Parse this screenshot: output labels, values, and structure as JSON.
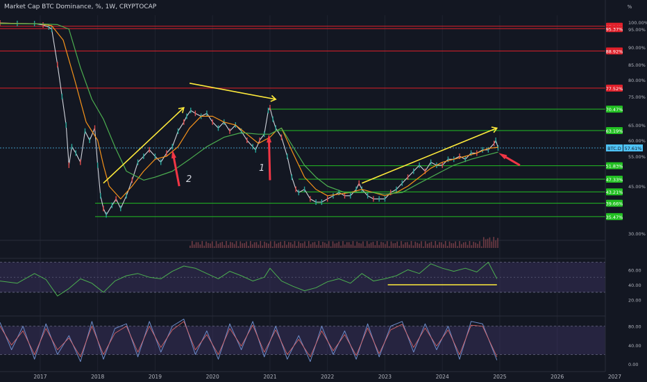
{
  "header": {
    "title": "Market Cap BTC Dominance, %, 1W, CRYPTOCAP",
    "axis_unit": "%"
  },
  "colors": {
    "background": "#131722",
    "price": "#d1d4dc",
    "ema_fast": "#f7931a",
    "ema_slow": "#4caf50",
    "trend": "#ffeb3b",
    "arrow": "#f23645",
    "res_line": "#e0202a",
    "sup_line": "#22c022",
    "rsi": "#4caf50",
    "stoch_k": "#6d8cc9",
    "stoch_d": "#e56a6a",
    "band": "#4a3c78"
  },
  "annotations": {
    "arrow_1": "1",
    "arrow_2": "2"
  },
  "chart_data": [
    {
      "type": "line",
      "title": "Market Cap BTC Dominance, %, 1W, CRYPTOCAP",
      "ylabel": "%",
      "ylim": [
        28,
        101
      ],
      "x_ticks": [
        "2017",
        "2018",
        "2019",
        "2020",
        "2021",
        "2022",
        "2023",
        "2024",
        "2025",
        "2026",
        "2027"
      ],
      "y_ticks": [
        "100.00%",
        "95.00%",
        "90.00%",
        "85.00%",
        "80.00%",
        "75.00%",
        "65.00%",
        "60.00%",
        "55.00%",
        "45.00%",
        "30.00%"
      ],
      "series": [
        {
          "key": "price",
          "x": [
            2016.3,
            2016.6,
            2016.9,
            2017.05,
            2017.15,
            2017.2,
            2017.3,
            2017.38,
            2017.45,
            2017.5,
            2017.55,
            2017.62,
            2017.7,
            2017.78,
            2017.86,
            2017.95,
            2018.0,
            2018.05,
            2018.1,
            2018.15,
            2018.25,
            2018.32,
            2018.4,
            2018.5,
            2018.6,
            2018.7,
            2018.8,
            2018.9,
            2019.0,
            2019.1,
            2019.2,
            2019.3,
            2019.4,
            2019.5,
            2019.55,
            2019.62,
            2019.7,
            2019.8,
            2019.9,
            2020.0,
            2020.1,
            2020.2,
            2020.3,
            2020.4,
            2020.5,
            2020.6,
            2020.7,
            2020.75,
            2020.82,
            2020.9,
            2020.97,
            2021.0,
            2021.05,
            2021.1,
            2021.2,
            2021.3,
            2021.38,
            2021.45,
            2021.5,
            2021.6,
            2021.7,
            2021.8,
            2021.9,
            2022.0,
            2022.1,
            2022.2,
            2022.3,
            2022.4,
            2022.5,
            2022.55,
            2022.6,
            2022.7,
            2022.8,
            2022.9,
            2023.0,
            2023.1,
            2023.2,
            2023.3,
            2023.4,
            2023.5,
            2023.6,
            2023.7,
            2023.8,
            2023.9,
            2024.0,
            2024.1,
            2024.2,
            2024.3,
            2024.4,
            2024.5,
            2024.6,
            2024.7,
            2024.8,
            2024.9,
            2024.93,
            2024.97
          ],
          "y": [
            99.5,
            99.1,
            99,
            98,
            96.5,
            95,
            85,
            75,
            65,
            52,
            58,
            56,
            53,
            63,
            60,
            64,
            52,
            42,
            38,
            36,
            39,
            41,
            38,
            42,
            47,
            53,
            55,
            57,
            55,
            53,
            56,
            58,
            63,
            66,
            68,
            70,
            69,
            68,
            69,
            66,
            64,
            66,
            63,
            65,
            63,
            60,
            58,
            57,
            60,
            62,
            70,
            71,
            67,
            64,
            61,
            55,
            48,
            44,
            43,
            44,
            41,
            40,
            40,
            41,
            42,
            43,
            42,
            42,
            44,
            46,
            44,
            42,
            41,
            41,
            41,
            43,
            44,
            46,
            48,
            50,
            52,
            50,
            53,
            52,
            52,
            54,
            54,
            55,
            54,
            56,
            56,
            57,
            57,
            59,
            60,
            57.6
          ]
        },
        {
          "key": "ema_fast",
          "x": [
            2016.3,
            2017.0,
            2017.2,
            2017.4,
            2017.6,
            2017.8,
            2018.0,
            2018.1,
            2018.2,
            2018.4,
            2018.6,
            2018.8,
            2019.0,
            2019.2,
            2019.4,
            2019.6,
            2019.8,
            2020.0,
            2020.2,
            2020.4,
            2020.6,
            2020.8,
            2021.0,
            2021.1,
            2021.2,
            2021.4,
            2021.6,
            2021.8,
            2022.0,
            2022.2,
            2022.4,
            2022.6,
            2022.8,
            2023.0,
            2023.2,
            2023.4,
            2023.6,
            2023.8,
            2024.0,
            2024.2,
            2024.4,
            2024.6,
            2024.8,
            2024.97
          ],
          "y": [
            99.3,
            98.8,
            97.5,
            92,
            80,
            66,
            60,
            52,
            45,
            41,
            45,
            50,
            54,
            55,
            58,
            64,
            68,
            68,
            66,
            65,
            62,
            59,
            61,
            63,
            64,
            56,
            48,
            44,
            42,
            42.5,
            43,
            44,
            43,
            42,
            43,
            45,
            48,
            51,
            53,
            54,
            55,
            56,
            57.5,
            57.8
          ]
        },
        {
          "key": "ema_slow",
          "x": [
            2016.3,
            2017.0,
            2017.3,
            2017.5,
            2017.7,
            2017.9,
            2018.1,
            2018.3,
            2018.5,
            2018.8,
            2019.0,
            2019.3,
            2019.6,
            2019.9,
            2020.2,
            2020.5,
            2020.8,
            2021.0,
            2021.2,
            2021.4,
            2021.6,
            2021.8,
            2022.0,
            2022.3,
            2022.6,
            2022.8,
            2023.0,
            2023.3,
            2023.6,
            2023.9,
            2024.2,
            2024.5,
            2024.8,
            2024.97
          ],
          "y": [
            99,
            98.8,
            98.3,
            95,
            84,
            74,
            67,
            58,
            50,
            47,
            48,
            50,
            54,
            58,
            61,
            62.5,
            62,
            62,
            64,
            58,
            52,
            48,
            45,
            43,
            43,
            43,
            42.5,
            43,
            46,
            49,
            52,
            54,
            55.5,
            56.3
          ]
        },
        {
          "key": "trend_lines",
          "segments": [
            {
              "x": [
                2018.1,
                2019.5
              ],
              "y": [
                46,
                71
              ]
            },
            {
              "x": [
                2019.6,
                2021.1
              ],
              "y": [
                79,
                74
              ]
            },
            {
              "x": [
                2022.6,
                2024.95
              ],
              "y": [
                46,
                64
              ]
            }
          ]
        }
      ],
      "levels": [
        {
          "label": "97.14%",
          "value": 97.14,
          "kind": "resistance"
        },
        {
          "label": "95.37%",
          "value": 95.37,
          "kind": "resistance"
        },
        {
          "label": "88.92%",
          "value": 88.92,
          "kind": "resistance"
        },
        {
          "label": "77.52%",
          "value": 77.52,
          "kind": "resistance"
        },
        {
          "label": "70.47%",
          "value": 70.47,
          "kind": "support"
        },
        {
          "label": "63.19%",
          "value": 63.19,
          "kind": "support"
        },
        {
          "label": "51.83%",
          "value": 51.83,
          "kind": "support"
        },
        {
          "label": "47.33%",
          "value": 47.33,
          "kind": "support"
        },
        {
          "label": "43.21%",
          "value": 43.21,
          "kind": "support"
        },
        {
          "label": "39.66%",
          "value": 39.66,
          "kind": "support"
        },
        {
          "label": "35.47%",
          "value": 35.47,
          "kind": "support"
        }
      ],
      "current": {
        "label": "BTC.D",
        "value_label": "57.61%",
        "value": 57.61
      },
      "legend": "none",
      "grid": false
    },
    {
      "type": "line",
      "title": "",
      "ylim": [
        10,
        80
      ],
      "y_ticks": [
        "60.00",
        "40.00",
        "20.00"
      ],
      "band": [
        30,
        70
      ],
      "series": [
        {
          "key": "rsi",
          "x": [
            2016.3,
            2016.6,
            2016.9,
            2017.1,
            2017.3,
            2017.5,
            2017.7,
            2017.9,
            2018.1,
            2018.3,
            2018.5,
            2018.7,
            2018.9,
            2019.1,
            2019.3,
            2019.5,
            2019.7,
            2019.9,
            2020.1,
            2020.3,
            2020.5,
            2020.7,
            2020.9,
            2021.0,
            2021.2,
            2021.4,
            2021.6,
            2021.8,
            2022.0,
            2022.2,
            2022.4,
            2022.6,
            2022.8,
            2023.0,
            2023.2,
            2023.4,
            2023.6,
            2023.8,
            2024.0,
            2024.2,
            2024.4,
            2024.6,
            2024.8,
            2024.95
          ],
          "y": [
            45,
            42,
            55,
            47,
            25,
            35,
            48,
            42,
            30,
            45,
            52,
            55,
            50,
            48,
            58,
            65,
            62,
            55,
            48,
            58,
            52,
            45,
            50,
            62,
            45,
            38,
            32,
            36,
            44,
            48,
            42,
            55,
            45,
            48,
            52,
            60,
            55,
            68,
            62,
            58,
            62,
            57,
            70,
            48
          ]
        },
        {
          "key": "rsi_support_line",
          "x": [
            2023.05,
            2024.95
          ],
          "y": [
            40,
            40
          ]
        }
      ]
    },
    {
      "type": "line",
      "title": "",
      "ylim": [
        -5,
        95
      ],
      "y_ticks": [
        "80.00",
        "40.00",
        "0.00"
      ],
      "band": [
        20,
        80
      ],
      "series": [
        {
          "key": "stoch_k",
          "x": [
            2016.3,
            2016.5,
            2016.7,
            2016.9,
            2017.1,
            2017.3,
            2017.5,
            2017.7,
            2017.9,
            2018.1,
            2018.3,
            2018.5,
            2018.7,
            2018.9,
            2019.1,
            2019.3,
            2019.5,
            2019.7,
            2019.9,
            2020.1,
            2020.3,
            2020.5,
            2020.7,
            2020.9,
            2021.1,
            2021.3,
            2021.5,
            2021.7,
            2021.9,
            2022.1,
            2022.3,
            2022.5,
            2022.7,
            2022.9,
            2023.1,
            2023.3,
            2023.5,
            2023.7,
            2023.9,
            2024.1,
            2024.3,
            2024.5,
            2024.7,
            2024.95
          ],
          "y": [
            88,
            30,
            80,
            10,
            85,
            20,
            60,
            5,
            90,
            10,
            75,
            85,
            15,
            90,
            25,
            80,
            95,
            20,
            70,
            10,
            85,
            30,
            90,
            15,
            80,
            10,
            60,
            5,
            80,
            20,
            70,
            10,
            85,
            15,
            80,
            90,
            25,
            85,
            30,
            80,
            10,
            90,
            85,
            8
          ]
        },
        {
          "key": "stoch_d",
          "x": [
            2016.3,
            2016.5,
            2016.7,
            2016.9,
            2017.1,
            2017.3,
            2017.5,
            2017.7,
            2017.9,
            2018.1,
            2018.3,
            2018.5,
            2018.7,
            2018.9,
            2019.1,
            2019.3,
            2019.5,
            2019.7,
            2019.9,
            2020.1,
            2020.3,
            2020.5,
            2020.7,
            2020.9,
            2021.1,
            2021.3,
            2021.5,
            2021.7,
            2021.9,
            2022.1,
            2022.3,
            2022.5,
            2022.7,
            2022.9,
            2023.1,
            2023.3,
            2023.5,
            2023.7,
            2023.9,
            2024.1,
            2024.3,
            2024.5,
            2024.7,
            2024.95
          ],
          "y": [
            80,
            40,
            70,
            20,
            75,
            30,
            55,
            15,
            80,
            20,
            65,
            80,
            25,
            80,
            35,
            72,
            90,
            30,
            62,
            20,
            75,
            38,
            82,
            25,
            72,
            20,
            52,
            15,
            70,
            28,
            62,
            18,
            76,
            22,
            72,
            84,
            35,
            76,
            38,
            72,
            20,
            82,
            80,
            15
          ]
        }
      ]
    }
  ]
}
